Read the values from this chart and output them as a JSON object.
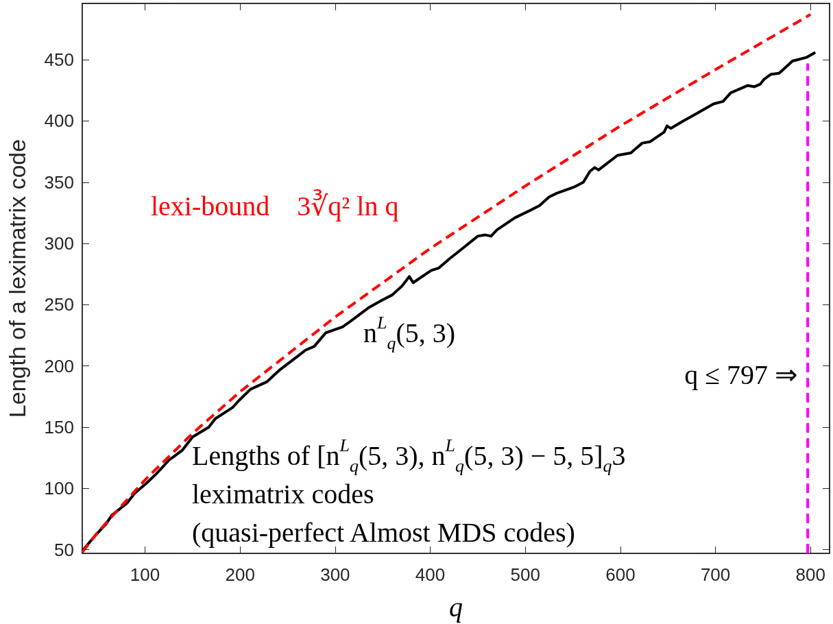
{
  "chart_data": {
    "type": "line",
    "xlabel": "q",
    "ylabel": "Length of a leximatrix code",
    "xlim": [
      34,
      820
    ],
    "xticks": [
      100,
      200,
      300,
      400,
      500,
      600,
      700,
      800
    ],
    "ylim": [
      47,
      496
    ],
    "yticks": [
      50,
      100,
      150,
      200,
      250,
      300,
      350,
      400,
      450
    ],
    "grid": false,
    "marker": "none",
    "series": [
      {
        "color": "#000000",
        "line_style": "solid",
        "x": [
          34,
          47,
          59,
          65,
          81,
          89,
          101,
          112,
          125,
          139,
          150,
          167,
          174,
          192,
          199,
          211,
          228,
          242,
          259,
          269,
          278,
          290,
          308,
          317,
          336,
          350,
          360,
          370,
          378,
          382,
          401,
          409,
          421,
          434,
          450,
          458,
          464,
          470,
          489,
          505,
          515,
          525,
          533,
          551,
          561,
          568,
          573,
          577,
          597,
          611,
          617,
          623,
          631,
          646,
          649,
          653,
          666,
          680,
          698,
          708,
          716,
          734,
          741,
          747,
          751,
          758,
          767,
          781,
          796,
          805
        ],
        "values": [
          49,
          61,
          71,
          78,
          88,
          96,
          104,
          112,
          123,
          131,
          142,
          150,
          157,
          166,
          172,
          181,
          187,
          197,
          207,
          213,
          216,
          227,
          232,
          237,
          248,
          254,
          258,
          265,
          273,
          268,
          278,
          280,
          288,
          296,
          306,
          307,
          306,
          311,
          321,
          327,
          331,
          338,
          341,
          346,
          350,
          359,
          362,
          360,
          372,
          374,
          378,
          382,
          383,
          391,
          396,
          394,
          400,
          406,
          414,
          416,
          423,
          429,
          428,
          430,
          434,
          438,
          439,
          449,
          452,
          456
        ]
      },
      {
        "color": "#ff0000",
        "line_style": "dashed",
        "x": [
          34,
          50,
          100,
          150,
          200,
          300,
          400,
          500,
          600,
          700,
          800
        ],
        "values": [
          48,
          64,
          107,
          145,
          179,
          240,
          296,
          347,
          396,
          442,
          487
        ]
      },
      {
        "color": "#ff00ff",
        "line_style": "dashed",
        "x": [
          797,
          797
        ],
        "values": [
          47,
          447
        ]
      }
    ],
    "annotations": [
      "lexi-bound    3∛q² ln q",
      "n$^{L}$$_{q}$(5, 3)",
      "Lengths of [n$^{L}$$_{q}$(5, 3), n$^{L}$$_{q}$(5, 3) − 5, 5]$_{q}$3\nleximatrix codes\n(quasi-perfect Almost MDS codes)",
      {
        "text": "q ≤ 797 ⇒",
        "x": 797,
        "y": 193
      }
    ]
  }
}
